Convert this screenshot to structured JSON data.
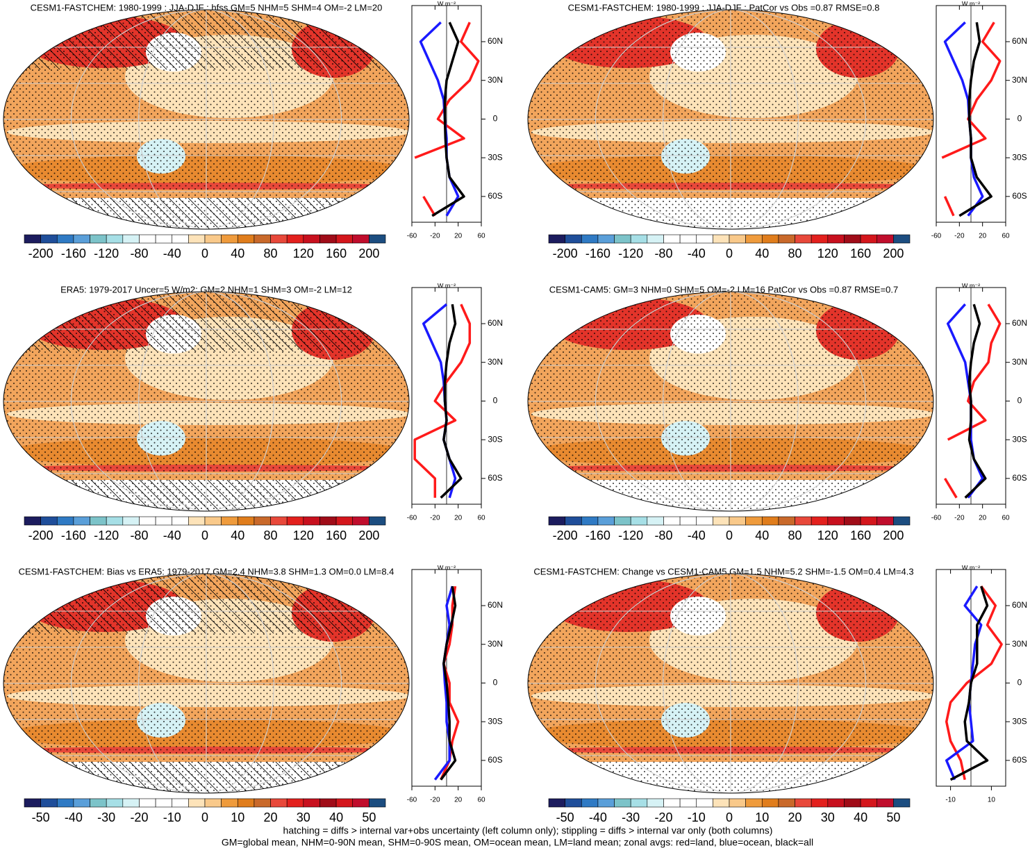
{
  "chart_data": [
    {
      "type": "line",
      "title": "CESM1-FASTCHEM: 1980-1999 : JJA-DJF : hfss GM=5 NHM=5 SHM=4 OM=-2 LM=20",
      "colorbar": {
        "lim": [
          -220,
          220
        ],
        "ticks": [
          -200,
          -160,
          -120,
          -80,
          -40,
          0,
          40,
          80,
          120,
          160,
          200
        ]
      },
      "x_label": "W m⁻²",
      "y": [
        75,
        60,
        45,
        30,
        15,
        0,
        -15,
        -30,
        -45,
        -60,
        -75
      ],
      "ylim": [
        -80,
        88
      ],
      "yticks": [
        {
          "value": 60,
          "label": "60N"
        },
        {
          "value": 30,
          "label": "30N"
        },
        0,
        {
          "value": -30,
          "label": "30S"
        },
        {
          "value": -60,
          "label": "60S"
        }
      ],
      "xlim": [
        -60,
        60
      ],
      "xticks": [
        -60,
        -20,
        20,
        60
      ],
      "series": [
        {
          "color": "#ff1a1a",
          "values": [
            40,
            25,
            55,
            40,
            5,
            -15,
            30,
            -55,
            null,
            -40,
            -20
          ]
        },
        {
          "color": "#1a1aff",
          "values": [
            -10,
            -45,
            -30,
            -15,
            -5,
            -3,
            0,
            0,
            5,
            20,
            0
          ]
        },
        {
          "color": "#000000",
          "values": [
            5,
            20,
            10,
            0,
            -3,
            -3,
            -2,
            0,
            5,
            30,
            -25
          ]
        }
      ]
    },
    {
      "type": "line",
      "title": "CESM1-FASTCHEM: 1980-1999 : JJA-DJF : PatCor vs Obs =0.87 RMSE=0.8",
      "colorbar": {
        "lim": [
          -220,
          220
        ],
        "ticks": [
          -200,
          -160,
          -120,
          -80,
          -40,
          0,
          40,
          80,
          120,
          160,
          200
        ]
      },
      "x_label": "W m⁻²",
      "y": [
        75,
        60,
        45,
        30,
        15,
        0,
        -15,
        -30,
        -45,
        -60,
        -75
      ],
      "ylim": [
        -80,
        88
      ],
      "yticks": [
        {
          "value": 60,
          "label": "60N"
        },
        {
          "value": 30,
          "label": "30N"
        },
        0,
        {
          "value": -30,
          "label": "30S"
        },
        {
          "value": -60,
          "label": "60S"
        }
      ],
      "xlim": [
        -60,
        60
      ],
      "xticks": [
        -60,
        -20,
        20,
        60
      ],
      "series": [
        {
          "color": "#ff1a1a",
          "values": [
            40,
            20,
            50,
            35,
            10,
            -5,
            25,
            -50,
            null,
            -45,
            -30
          ]
        },
        {
          "color": "#1a1aff",
          "values": [
            -10,
            -45,
            -30,
            -15,
            -5,
            -3,
            0,
            0,
            5,
            20,
            -5
          ]
        },
        {
          "color": "#000000",
          "values": [
            10,
            15,
            5,
            0,
            -3,
            -3,
            0,
            0,
            10,
            35,
            -20
          ]
        }
      ]
    },
    {
      "type": "line",
      "title": "ERA5: 1979-2017 Uncer=5 W/m2: GM=2 NHM=1 SHM=3 OM=-2 LM=12",
      "colorbar": {
        "lim": [
          -220,
          220
        ],
        "ticks": [
          -200,
          -160,
          -120,
          -80,
          -40,
          0,
          40,
          80,
          120,
          160,
          200
        ]
      },
      "x_label": "W m⁻²",
      "y": [
        75,
        60,
        45,
        30,
        15,
        0,
        -15,
        -30,
        -45,
        -60,
        -75
      ],
      "ylim": [
        -80,
        88
      ],
      "yticks": [
        {
          "value": 60,
          "label": "60N"
        },
        {
          "value": 30,
          "label": "30N"
        },
        0,
        {
          "value": -30,
          "label": "30S"
        },
        {
          "value": -60,
          "label": "60S"
        }
      ],
      "xlim": [
        -60,
        60
      ],
      "xticks": [
        -60,
        -20,
        20,
        60
      ],
      "series": [
        {
          "color": "#ff1a1a",
          "values": [
            25,
            40,
            40,
            25,
            0,
            -20,
            15,
            -55,
            -55,
            -20,
            -20
          ]
        },
        {
          "color": "#1a1aff",
          "values": [
            0,
            -40,
            -25,
            -10,
            -5,
            -3,
            0,
            -5,
            5,
            15,
            5
          ]
        },
        {
          "color": "#000000",
          "values": [
            10,
            15,
            5,
            0,
            -3,
            -3,
            0,
            -5,
            5,
            25,
            -10
          ]
        }
      ]
    },
    {
      "type": "line",
      "title": "CESM1-CAM5: GM=3 NHM=0 SHM=5 OM=-2 LM=16 PatCor vs Obs =0.87 RMSE=0.7",
      "colorbar": {
        "lim": [
          -220,
          220
        ],
        "ticks": [
          -200,
          -160,
          -120,
          -80,
          -40,
          0,
          40,
          80,
          120,
          160,
          200
        ]
      },
      "x_label": "W m⁻²",
      "y": [
        75,
        60,
        45,
        30,
        15,
        0,
        -15,
        -30,
        -45,
        -60,
        -75
      ],
      "ylim": [
        -80,
        88
      ],
      "yticks": [
        {
          "value": 60,
          "label": "60N"
        },
        {
          "value": 30,
          "label": "30N"
        },
        0,
        {
          "value": -30,
          "label": "30S"
        },
        {
          "value": -60,
          "label": "60S"
        }
      ],
      "xlim": [
        -60,
        60
      ],
      "xticks": [
        -60,
        -20,
        20,
        60
      ],
      "series": [
        {
          "color": "#ff1a1a",
          "values": [
            30,
            50,
            35,
            30,
            5,
            -5,
            25,
            -40,
            null,
            -45,
            -25
          ]
        },
        {
          "color": "#1a1aff",
          "values": [
            -10,
            -40,
            -25,
            -10,
            -5,
            0,
            0,
            0,
            5,
            20,
            -5
          ]
        },
        {
          "color": "#000000",
          "values": [
            5,
            15,
            5,
            0,
            -3,
            0,
            0,
            -3,
            5,
            25,
            -10
          ]
        }
      ]
    },
    {
      "type": "line",
      "title": "CESM1-FASTCHEM: Bias vs ERA5: 1979-2017 GM=2.4 NHM=3.8 SHM=1.3 OM=0.0 LM=8.4",
      "colorbar": {
        "lim": [
          -55,
          55
        ],
        "ticks": [
          -50,
          -40,
          -30,
          -20,
          -10,
          0,
          10,
          20,
          30,
          40,
          50
        ]
      },
      "x_label": "W m⁻²",
      "y": [
        75,
        60,
        45,
        30,
        15,
        0,
        -15,
        -30,
        -45,
        -60,
        -75
      ],
      "ylim": [
        -80,
        88
      ],
      "yticks": [
        {
          "value": 60,
          "label": "60N"
        },
        {
          "value": 30,
          "label": "30N"
        },
        0,
        {
          "value": -30,
          "label": "30S"
        },
        {
          "value": -60,
          "label": "60S"
        }
      ],
      "xlim": [
        -60,
        60
      ],
      "xticks": [
        -60,
        -20,
        20,
        60
      ],
      "series": [
        {
          "color": "#ff1a1a",
          "values": [
            15,
            10,
            10,
            5,
            -5,
            5,
            5,
            20,
            10,
            5,
            -10
          ]
        },
        {
          "color": "#1a1aff",
          "values": [
            10,
            0,
            5,
            0,
            -5,
            -3,
            0,
            0,
            5,
            5,
            -20
          ]
        },
        {
          "color": "#000000",
          "values": [
            10,
            15,
            8,
            0,
            -5,
            0,
            3,
            5,
            5,
            15,
            -10
          ]
        }
      ]
    },
    {
      "type": "line",
      "title": "CESM1-FASTCHEM: Change vs CESM1-CAM5 GM=1.5 NHM=5.2 SHM=-1.5 OM=0.4 LM=4.3",
      "colorbar": {
        "lim": [
          -55,
          55
        ],
        "ticks": [
          -50,
          -40,
          -30,
          -20,
          -10,
          0,
          10,
          20,
          30,
          40,
          50
        ]
      },
      "x_label": "W m⁻²",
      "y": [
        75,
        60,
        45,
        30,
        15,
        0,
        -15,
        -30,
        -45,
        -60,
        -75
      ],
      "ylim": [
        -80,
        88
      ],
      "yticks": [
        {
          "value": 60,
          "label": "60N"
        },
        {
          "value": 30,
          "label": "30N"
        },
        0,
        {
          "value": -30,
          "label": "30S"
        },
        {
          "value": -60,
          "label": "60S"
        }
      ],
      "xlim": [
        -17,
        17
      ],
      "xticks": [
        -10,
        10
      ],
      "series": [
        {
          "color": "#ff1a1a",
          "values": [
            5,
            12,
            8,
            15,
            10,
            -2,
            -10,
            -12,
            -10,
            -5,
            -3
          ]
        },
        {
          "color": "#1a1aff",
          "values": [
            3,
            -3,
            5,
            2,
            1,
            0,
            -1,
            0,
            1,
            -12,
            -8
          ]
        },
        {
          "color": "#000000",
          "values": [
            5,
            8,
            3,
            3,
            3,
            0,
            -1,
            -3,
            -2,
            8,
            -10
          ]
        }
      ]
    }
  ],
  "colorbar_colors": [
    "#1c1c5e",
    "#1f4e9a",
    "#2f7ac4",
    "#5a9fd9",
    "#7cc3c9",
    "#a6dfe6",
    "#d6f2f5",
    "#ffffff",
    "#ffffff",
    "#ffffff",
    "#fde3b9",
    "#f9c98a",
    "#ef9b3c",
    "#e07d1c",
    "#c9692a",
    "#e8483a",
    "#e3201d",
    "#c8101e",
    "#a00c18",
    "#d4161c",
    "#c00d2c",
    "#1c4d80"
  ],
  "footer": [
    "hatching = diffs > internal var+obs uncertainty (left column only); stippling = diffs > internal var only (both columns)",
    "GM=global mean, NHM=0-90N mean, SHM=0-90S mean, OM=ocean mean, LM=land mean; zonal avgs: red=land, blue=ocean, black=all"
  ]
}
